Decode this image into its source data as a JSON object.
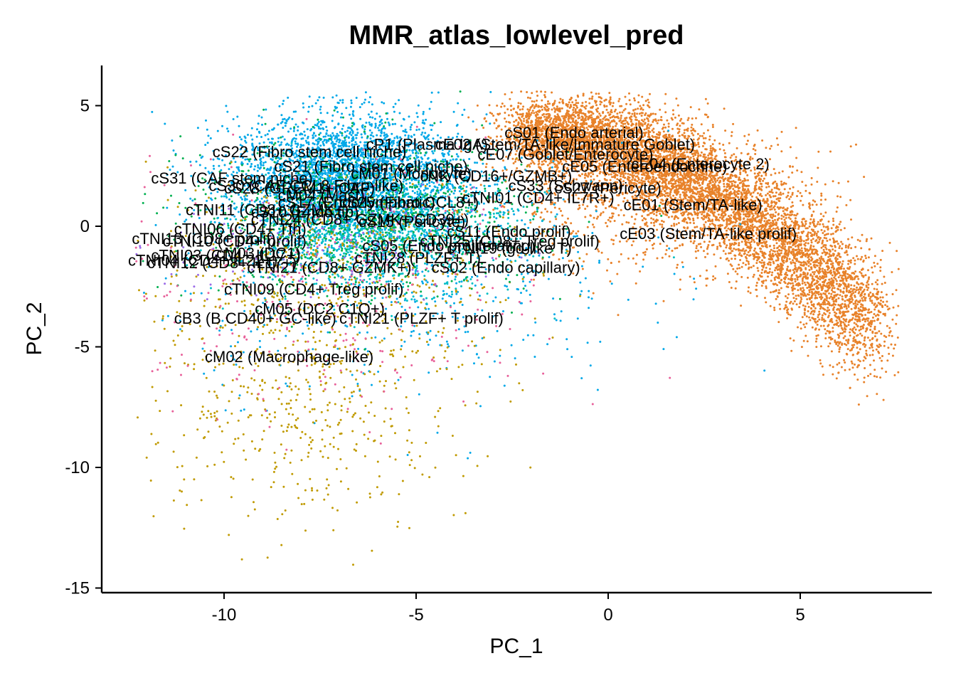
{
  "chart_data": {
    "type": "scatter",
    "title": "MMR_atlas_lowlevel_pred",
    "xlabel": "PC_1",
    "ylabel": "PC_2",
    "xlim": [
      -13.2,
      8.4
    ],
    "ylim": [
      -15.4,
      6.6
    ],
    "xticks": [
      -10,
      -5,
      0,
      5
    ],
    "xtick_labels": [
      "-10",
      "-5",
      "0",
      "5"
    ],
    "yticks": [
      5,
      0,
      -5,
      -10,
      -15
    ],
    "ytick_labels": [
      "5",
      "0",
      "-5",
      "-10",
      "-15"
    ],
    "grid": false,
    "legend": "none",
    "colors": {
      "epithelial": "#E8822A",
      "stromal": "#00A8E8",
      "myeloid": "#C09A00",
      "tcell": "#00B050",
      "other": "#E8609A",
      "bcell": "#9B6BE8",
      "endo": "#00BFC4"
    },
    "labels": [
      {
        "text": "cS01 (Endo arterial)",
        "x": -2.7,
        "y": 3.9
      },
      {
        "text": "cE02 (Stem/TA-like/Immature Goblet)",
        "x": -4.5,
        "y": 3.4
      },
      {
        "text": "cP1 (Plasma IgA)",
        "x": -6.3,
        "y": 3.4
      },
      {
        "text": "cS22 (Fibro stem cell niche)",
        "x": -10.3,
        "y": 3.1
      },
      {
        "text": "cE07 (Goblet/Enterocyte)",
        "x": -3.4,
        "y": 3.0
      },
      {
        "text": "cE05 (Enteroendocrine)",
        "x": -1.2,
        "y": 2.5
      },
      {
        "text": "cE04 (Enterocyte 2)",
        "x": 0.6,
        "y": 2.6
      },
      {
        "text": "cS21 (Fibro stem cell niche)",
        "x": -8.7,
        "y": 2.5
      },
      {
        "text": "cM01 (Monocyte)",
        "x": -6.7,
        "y": 2.2
      },
      {
        "text": "cNK (CD16+/GZMB+)",
        "x": -4.9,
        "y": 2.1
      },
      {
        "text": "cS31 (CAF stem niche)",
        "x": -11.9,
        "y": 2.0
      },
      {
        "text": "cS30 (CAF CCL8 Fibro-like)",
        "x": -10.4,
        "y": 1.7
      },
      {
        "text": "cS33 (Schwann)",
        "x": -2.6,
        "y": 1.7
      },
      {
        "text": "cS28 (GREM1+ CAF)",
        "x": -10.0,
        "y": 1.6
      },
      {
        "text": "cS27 (Pericyte)",
        "x": -1.4,
        "y": 1.6
      },
      {
        "text": "cTNI01 (CD4+ IL7R+)",
        "x": -3.8,
        "y": 1.2
      },
      {
        "text": "cM04 (Mast)",
        "x": -8.6,
        "y": 1.3
      },
      {
        "text": "cS17 (Endo lymphatic)",
        "x": -8.6,
        "y": 1.0
      },
      {
        "text": "cS25 (Fibro CCL8+)",
        "x": -7.0,
        "y": 1.0
      },
      {
        "text": "cE01 (Stem/TA-like)",
        "x": 0.4,
        "y": 0.9
      },
      {
        "text": "cTNI11 (CD8+ GZMK+)",
        "x": -11.0,
        "y": 0.7
      },
      {
        "text": "cS10 (Endo tip)",
        "x": -9.3,
        "y": 0.6
      },
      {
        "text": "cTNI24 (CD8+ GZMK+ CD39+)",
        "x": -9.3,
        "y": 0.3
      },
      {
        "text": "cS15 (Pericyte)",
        "x": -6.5,
        "y": 0.2
      },
      {
        "text": "cTNI06 (CD4+ Tfh)",
        "x": -11.3,
        "y": -0.1
      },
      {
        "text": "cS11 (Endo prolif)",
        "x": -4.2,
        "y": -0.2
      },
      {
        "text": "cE03 (Stem/TA-like prolif)",
        "x": 0.3,
        "y": -0.3
      },
      {
        "text": "cTNI13 (CD8+ prolif)",
        "x": -12.4,
        "y": -0.5
      },
      {
        "text": "cTNI10 (CD4+ prolif)",
        "x": -11.6,
        "y": -0.6
      },
      {
        "text": "cTNI25 (CD8+ Treg prolif)",
        "x": -4.9,
        "y": -0.6
      },
      {
        "text": "cS05 (Endo proliferating)",
        "x": -6.4,
        "y": -0.8
      },
      {
        "text": "cTNI19 (gd-like T)",
        "x": -4.2,
        "y": -0.9
      },
      {
        "text": "cTNI03 (CD4+ IL17+)",
        "x": -11.9,
        "y": -1.2
      },
      {
        "text": "cM03 (DC1)",
        "x": -10.2,
        "y": -1.1
      },
      {
        "text": "cTNI04 (CD4+ IL22+)",
        "x": -12.5,
        "y": -1.4
      },
      {
        "text": "cTNI28 (PLZF+ T)",
        "x": -6.6,
        "y": -1.3
      },
      {
        "text": "cTNI12 (CD8+ IL17+)",
        "x": -12.0,
        "y": -1.5
      },
      {
        "text": "cTNI21 (CD8+ GZMK+)",
        "x": -9.4,
        "y": -1.7
      },
      {
        "text": "cS02 (Endo capillary)",
        "x": -4.6,
        "y": -1.7
      },
      {
        "text": "cTNI09 (CD4+ Treg prolif)",
        "x": -10.0,
        "y": -2.6
      },
      {
        "text": "cM05 (DC2 C1Q+)",
        "x": -9.2,
        "y": -3.4
      },
      {
        "text": "cB3 (B CD40+ GC-like)",
        "x": -11.3,
        "y": -3.8
      },
      {
        "text": "cTNI21 (PLZF+ T prolif)",
        "x": -7.0,
        "y": -3.8
      },
      {
        "text": "cM02 (Macrophage-like)",
        "x": -10.5,
        "y": -5.4
      }
    ]
  }
}
